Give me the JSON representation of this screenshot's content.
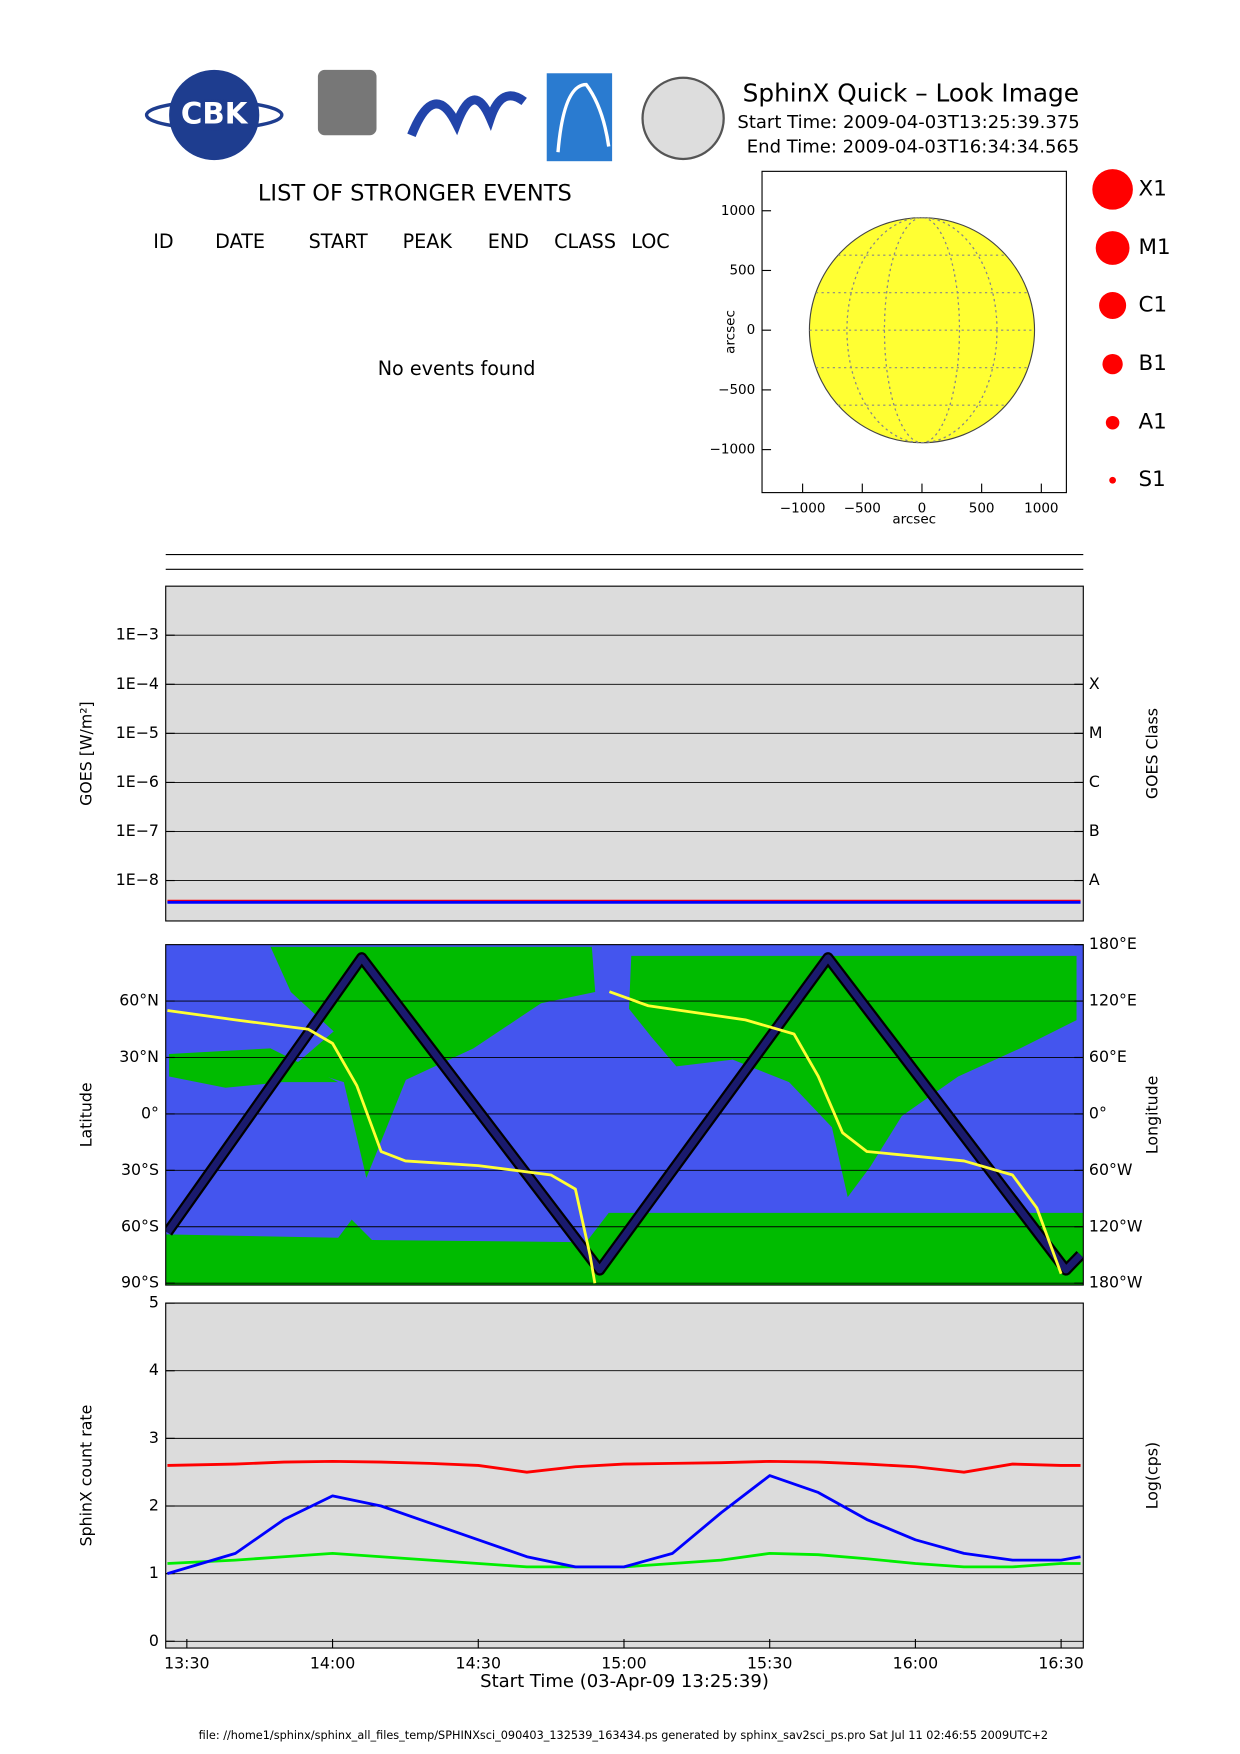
{
  "header": {
    "title": "SphinX Quick – Look Image",
    "start_time": "Start Time: 2009-04-03T13:25:39.375",
    "end_time": "End Time: 2009-04-03T16:34:34.565",
    "logo_text": "CBK"
  },
  "events": {
    "title": "LIST OF STRONGER EVENTS",
    "columns": [
      "ID",
      "DATE",
      "START",
      "PEAK",
      "END",
      "CLASS",
      "LOC"
    ],
    "message": "No events found"
  },
  "class_legend": {
    "labels": [
      "X1",
      "M1",
      "C1",
      "B1",
      "A1",
      "S1"
    ],
    "color": "#ff0000"
  },
  "footer": "file: //home1/sphinx/sphinx_all_files_temp/SPHINXsci_090403_132539_163434.ps generated by sphinx_sav2sci_ps.pro Sat Jul 11 02:46:55 2009UTC+2",
  "chart_data": [
    {
      "type": "disk",
      "xlabel": "arcsec",
      "ylabel": "arcsec",
      "xlim": [
        -1340,
        1210
      ],
      "ylim": [
        -1360,
        1330
      ],
      "xticks": [
        {
          "value": -1000,
          "label": "−1000"
        },
        {
          "value": -500,
          "label": "−500"
        },
        0,
        500,
        1000
      ],
      "yticks": [
        {
          "value": -1000,
          "label": "−1000"
        },
        {
          "value": -500,
          "label": "−500"
        },
        0,
        500,
        1000
      ],
      "sun_radius": 943,
      "color": "#ffff33",
      "background": "#ffffff"
    },
    {
      "type": "line",
      "ylabel": "GOES [W/m²]",
      "y2label": "GOES Class",
      "log_scale": true,
      "grid": true,
      "background": "#dcdcdc",
      "xlim": [
        "13:25:39",
        "16:34:34"
      ],
      "ylim": [
        1.5e-09,
        0.01
      ],
      "yticks": [
        {
          "value": 0.001,
          "label": "1E−3"
        },
        {
          "value": 0.0001,
          "label": "1E−4"
        },
        {
          "value": 1e-05,
          "label": "1E−5"
        },
        {
          "value": 1e-06,
          "label": "1E−6"
        },
        {
          "value": 1e-07,
          "label": "1E−7"
        },
        {
          "value": 1e-08,
          "label": "1E−8"
        }
      ],
      "y2ticks": [
        {
          "value": 0.0001,
          "label": "X"
        },
        {
          "value": 1e-05,
          "label": "M"
        },
        {
          "value": 1e-06,
          "label": "C"
        },
        {
          "value": 1e-07,
          "label": "B"
        },
        {
          "value": 1e-08,
          "label": "A"
        }
      ],
      "series": [
        {
          "color": "#ff0000",
          "x": [
            "13:26",
            "16:34"
          ],
          "values": [
            3.8e-09,
            3.8e-09
          ]
        },
        {
          "color": "#0000ff",
          "x": [
            "13:26",
            "16:34"
          ],
          "values": [
            3.6e-09,
            3.6e-09
          ]
        }
      ]
    },
    {
      "type": "line",
      "ylabel": "Latitude",
      "y2label": "Longitude",
      "grid": true,
      "background": "#4455ee",
      "xlim": [
        "13:25:39",
        "16:34:34"
      ],
      "ylim": [
        -91,
        90
      ],
      "y2lim": [
        -182,
        180
      ],
      "yticks": [
        {
          "value": 60,
          "label": "60°N"
        },
        {
          "value": 30,
          "label": "30°N"
        },
        {
          "value": 0,
          "label": "0°"
        },
        {
          "value": -30,
          "label": "30°S"
        },
        {
          "value": -60,
          "label": "60°S"
        },
        {
          "value": -90,
          "label": "90°S"
        }
      ],
      "y2ticks": [
        {
          "value": 180,
          "label": "180°E"
        },
        {
          "value": 120,
          "label": "120°E"
        },
        {
          "value": 60,
          "label": "60°E"
        },
        {
          "value": 0,
          "label": "0°"
        },
        {
          "value": -60,
          "label": "60°W"
        },
        {
          "value": -120,
          "label": "120°W"
        },
        {
          "value": -180,
          "label": "180°W"
        }
      ],
      "series": [
        {
          "color": "#1a1a6e",
          "x": [
            "13:26",
            "14:06",
            "14:55",
            "15:42",
            "16:31",
            "16:34"
          ],
          "values": [
            -63,
            83,
            -83,
            83,
            -83,
            -75
          ]
        },
        {
          "color": "#ffff33",
          "axis": "y2",
          "x": [
            "13:26",
            "13:40",
            "13:55",
            "14:00",
            "14:05",
            "14:10",
            "14:15",
            "14:30",
            "14:45",
            "14:50",
            "14:53",
            "14:54",
            "14:55",
            "14:57",
            "15:05",
            "15:25",
            "15:35",
            "15:40",
            "15:45",
            "15:50",
            "16:10",
            "16:20",
            "16:25",
            "16:30"
          ],
          "values": [
            110,
            100,
            90,
            75,
            30,
            -40,
            -50,
            -55,
            -65,
            -80,
            -150,
            -180,
            null,
            130,
            115,
            100,
            85,
            40,
            -20,
            -40,
            -50,
            -65,
            -100,
            -170
          ]
        }
      ]
    },
    {
      "type": "line",
      "ylabel": "SphinX count rate",
      "y2label": "Log(cps)",
      "xlabel": "Start Time (03-Apr-09 13:25:39)",
      "grid": true,
      "background": "#dcdcdc",
      "xlim": [
        "13:25:39",
        "16:34:34"
      ],
      "ylim": [
        -0.1,
        5
      ],
      "yticks": [
        0,
        1,
        2,
        3,
        4,
        5
      ],
      "xticks": [
        "13:30",
        "14:00",
        "14:30",
        "15:00",
        "15:30",
        "16:00",
        "16:30"
      ],
      "series": [
        {
          "color": "#ff0000",
          "x": [
            "13:26",
            "13:40",
            "13:50",
            "14:00",
            "14:10",
            "14:20",
            "14:30",
            "14:40",
            "14:50",
            "15:00",
            "15:10",
            "15:20",
            "15:30",
            "15:40",
            "15:50",
            "16:00",
            "16:10",
            "16:20",
            "16:30",
            "16:34"
          ],
          "values": [
            2.6,
            2.62,
            2.65,
            2.66,
            2.65,
            2.63,
            2.6,
            2.5,
            2.58,
            2.62,
            2.63,
            2.64,
            2.66,
            2.65,
            2.62,
            2.58,
            2.5,
            2.62,
            2.6,
            2.6
          ]
        },
        {
          "color": "#00ee00",
          "x": [
            "13:26",
            "13:40",
            "13:50",
            "14:00",
            "14:10",
            "14:20",
            "14:30",
            "14:40",
            "14:50",
            "15:00",
            "15:10",
            "15:20",
            "15:30",
            "15:40",
            "15:50",
            "16:00",
            "16:10",
            "16:20",
            "16:30",
            "16:34"
          ],
          "values": [
            1.15,
            1.2,
            1.25,
            1.3,
            1.25,
            1.2,
            1.15,
            1.1,
            1.1,
            1.1,
            1.15,
            1.2,
            1.3,
            1.28,
            1.22,
            1.15,
            1.1,
            1.1,
            1.15,
            1.15
          ]
        },
        {
          "color": "#0000ff",
          "x": [
            "13:26",
            "13:40",
            "13:50",
            "14:00",
            "14:10",
            "14:20",
            "14:30",
            "14:40",
            "14:50",
            "15:00",
            "15:10",
            "15:20",
            "15:30",
            "15:40",
            "15:50",
            "16:00",
            "16:10",
            "16:20",
            "16:30",
            "16:34"
          ],
          "values": [
            1.0,
            1.3,
            1.8,
            2.15,
            2.0,
            1.75,
            1.5,
            1.25,
            1.1,
            1.1,
            1.3,
            1.9,
            2.45,
            2.2,
            1.8,
            1.5,
            1.3,
            1.2,
            1.2,
            1.25
          ]
        }
      ]
    }
  ]
}
